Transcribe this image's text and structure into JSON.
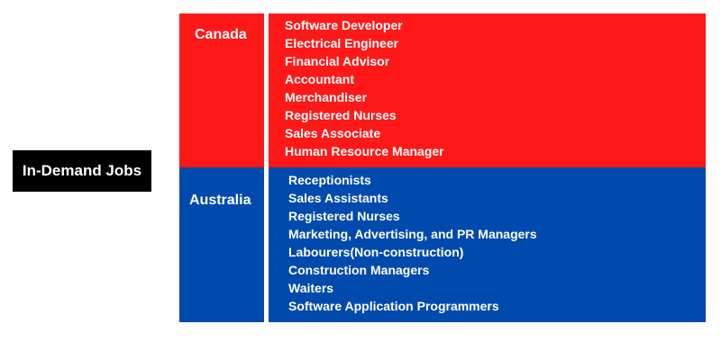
{
  "title": "In-Demand Jobs",
  "colors": {
    "canada_panel": "#fe1818",
    "australia_panel": "#014aad",
    "label_bg": "#000000",
    "text": "#ffffff"
  },
  "countries": [
    {
      "name": "Canada",
      "jobs": [
        "Software Developer",
        "Electrical Engineer",
        "Financial Advisor",
        "Accountant",
        "Merchandiser",
        "Registered Nurses",
        "Sales Associate",
        "Human Resource Manager"
      ]
    },
    {
      "name": "Australia",
      "jobs": [
        "Receptionists",
        "Sales Assistants",
        "Registered Nurses",
        "Marketing, Advertising, and PR Managers",
        "Labourers(Non-construction)",
        "Construction Managers",
        "Waiters",
        "Software Application Programmers"
      ]
    }
  ]
}
